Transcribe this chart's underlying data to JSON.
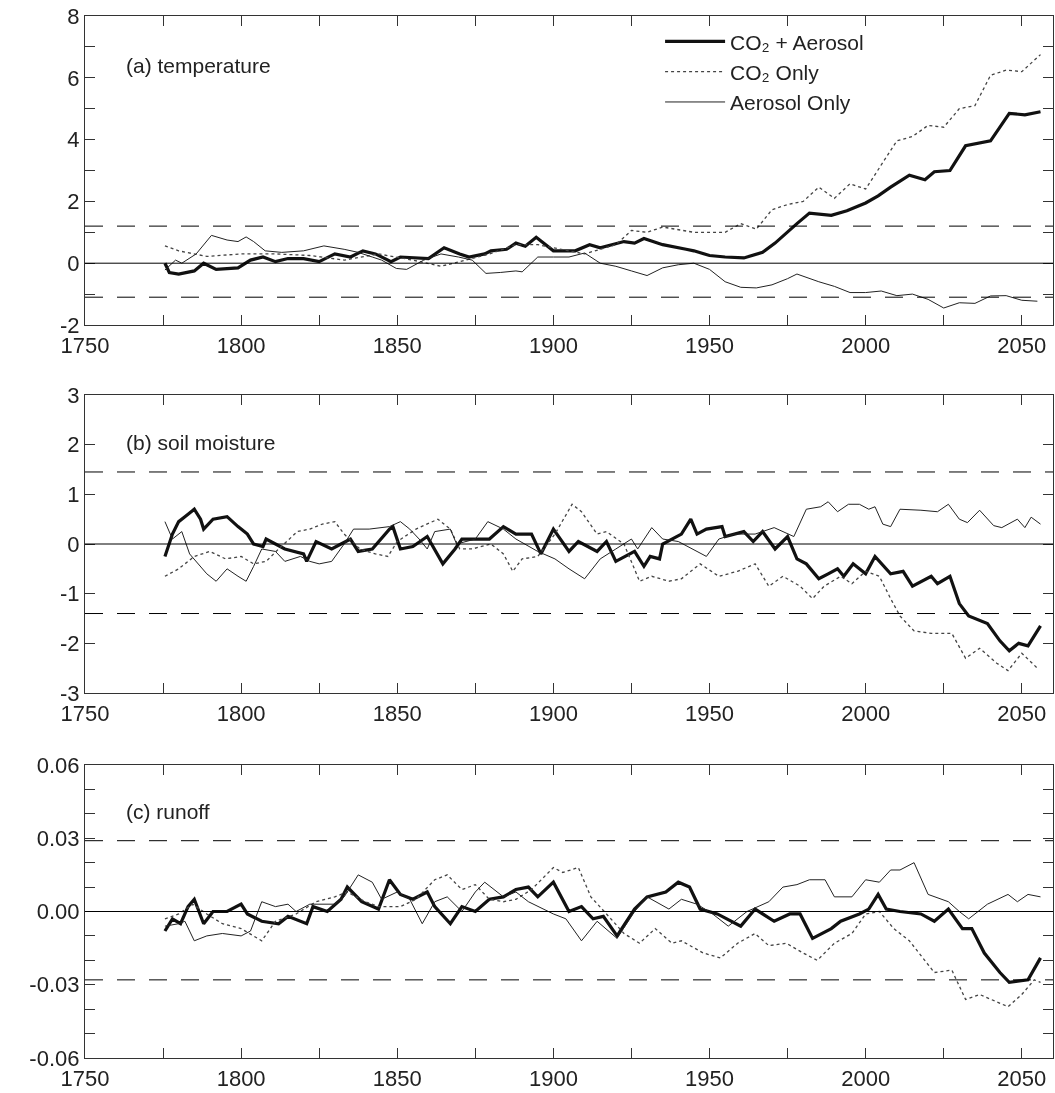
{
  "chart_data": [
    {
      "type": "line",
      "title": "(a) temperature",
      "xlim": [
        1750,
        2060
      ],
      "xticks": [
        1750,
        {
          "value": 1775,
          "label": null
        },
        1800,
        {
          "value": 1825,
          "label": null
        },
        1850,
        {
          "value": 1875,
          "label": null
        },
        1900,
        {
          "value": 1925,
          "label": null
        },
        1950,
        {
          "value": 1975,
          "label": null
        },
        2000,
        {
          "value": 2025,
          "label": null
        },
        2050
      ],
      "ylim": [
        -2,
        8
      ],
      "yticks": [
        -2,
        {
          "value": -1,
          "label": null
        },
        0,
        {
          "value": 1,
          "label": null
        },
        2,
        {
          "value": 3,
          "label": null
        },
        4,
        {
          "value": 5,
          "label": null
        },
        6,
        {
          "value": 7,
          "label": null
        },
        8
      ],
      "legend": "top right",
      "ref_lines": [
        {
          "axis": "y",
          "value": 0,
          "line_style": "solid",
          "color": "#000000"
        },
        {
          "axis": "y",
          "value": 1.2,
          "line_style": "dashed",
          "color": "#000000"
        },
        {
          "axis": "y",
          "value": -1.1,
          "line_style": "dashed",
          "color": "#000000"
        }
      ],
      "series": [
        {
          "name": "CO₂ + Aerosol",
          "color": "#111111",
          "line_style": "solid",
          "x": [
            1775.6,
            1777,
            1780,
            1785,
            1788,
            1792,
            1799,
            1803,
            1807,
            1811,
            1815,
            1820,
            1825,
            1830,
            1835,
            1839,
            1843,
            1848,
            1851,
            1860,
            1865,
            1870,
            1873,
            1878,
            1880,
            1885,
            1888,
            1891,
            1894.5,
            1900,
            1907,
            1911.6,
            1915,
            1922.6,
            1926,
            1929,
            1935,
            1942.5,
            1945,
            1950,
            1955,
            1961,
            1967,
            1971,
            1978,
            1982,
            1989,
            1994,
            2000,
            2004,
            2008,
            2014,
            2019,
            2022,
            2027,
            2032,
            2040,
            2046,
            2051,
            2056
          ],
          "values": [
            0,
            -0.3,
            -0.35,
            -0.25,
            0,
            -0.2,
            -0.15,
            0.1,
            0.2,
            0.05,
            0.15,
            0.15,
            0.05,
            0.3,
            0.2,
            0.4,
            0.3,
            0.05,
            0.2,
            0.15,
            0.5,
            0.3,
            0.2,
            0.3,
            0.4,
            0.45,
            0.65,
            0.55,
            0.84,
            0.4,
            0.4,
            0.6,
            0.5,
            0.7,
            0.65,
            0.8,
            0.6,
            0.45,
            0.4,
            0.25,
            0.2,
            0.17,
            0.35,
            0.65,
            1.28,
            1.62,
            1.55,
            1.7,
            1.95,
            2.18,
            2.46,
            2.85,
            2.7,
            2.96,
            3.0,
            3.8,
            3.96,
            4.85,
            4.8,
            4.9
          ]
        },
        {
          "name": "CO₂ Only",
          "color": "#444444",
          "line_style": "dotted",
          "x": [
            1775.6,
            1780,
            1789,
            1800,
            1811,
            1822,
            1833,
            1844,
            1855,
            1864,
            1872,
            1879.5,
            1888,
            1895,
            1900,
            1910,
            1920,
            1925,
            1930,
            1935,
            1945,
            1950,
            1955,
            1960,
            1965,
            1970,
            1975,
            1980,
            1985,
            1990,
            1995,
            2000,
            2005,
            2010,
            2015,
            2020,
            2025,
            2030,
            2035,
            2040,
            2045,
            2050,
            2056
          ],
          "values": [
            0.56,
            0.4,
            0.22,
            0.3,
            0.3,
            0.25,
            0.1,
            0.3,
            0.1,
            -0.1,
            0.1,
            0.3,
            0.6,
            0.6,
            0.5,
            0.3,
            0.6,
            1.06,
            1.0,
            1.17,
            1.0,
            1.0,
            1.0,
            1.28,
            1.1,
            1.73,
            1.9,
            2.0,
            2.46,
            2.1,
            2.57,
            2.4,
            3.18,
            3.96,
            4.1,
            4.46,
            4.4,
            5.0,
            5.1,
            6.08,
            6.25,
            6.2,
            6.75
          ]
        },
        {
          "name": "Aerosol Only",
          "color": "#222222",
          "line_style": "solid",
          "x": [
            1775.6,
            1779,
            1781,
            1785.6,
            1790.5,
            1795.5,
            1799,
            1801.6,
            1804,
            1807.7,
            1813,
            1820,
            1826.5,
            1833,
            1837.5,
            1842,
            1845,
            1849.7,
            1853,
            1858.5,
            1864,
            1869.6,
            1874,
            1878.4,
            1883,
            1888,
            1890,
            1895,
            1900,
            1905,
            1910,
            1915,
            1920,
            1925,
            1930,
            1935,
            1940,
            1945,
            1950,
            1955,
            1960,
            1965,
            1970,
            1975,
            1978,
            1985,
            1990,
            1995,
            2000,
            2005,
            2010,
            2015,
            2020,
            2025,
            2030,
            2035,
            2040,
            2045,
            2050,
            2055
          ],
          "values": [
            -0.22,
            0.1,
            0,
            0.3,
            0.9,
            0.75,
            0.7,
            0.85,
            0.7,
            0.4,
            0.35,
            0.4,
            0.56,
            0.45,
            0.35,
            0.2,
            0.1,
            -0.17,
            -0.2,
            0.1,
            0.3,
            0.2,
            0.1,
            -0.33,
            -0.3,
            -0.25,
            -0.28,
            0.2,
            0.2,
            0.2,
            0.33,
            0.0,
            -0.1,
            -0.25,
            -0.4,
            -0.15,
            -0.05,
            0.0,
            -0.2,
            -0.6,
            -0.78,
            -0.8,
            -0.7,
            -0.5,
            -0.35,
            -0.6,
            -0.75,
            -0.95,
            -0.95,
            -0.9,
            -1.05,
            -1.0,
            -1.17,
            -1.45,
            -1.28,
            -1.3,
            -1.06,
            -1.05,
            -1.2,
            -1.23
          ]
        }
      ]
    },
    {
      "type": "line",
      "title": "(b) soil moisture",
      "xlim": [
        1750,
        2060
      ],
      "xticks": [
        1750,
        {
          "value": 1775,
          "label": null
        },
        1800,
        {
          "value": 1825,
          "label": null
        },
        1850,
        {
          "value": 1875,
          "label": null
        },
        1900,
        {
          "value": 1925,
          "label": null
        },
        1950,
        {
          "value": 1975,
          "label": null
        },
        2000,
        {
          "value": 2025,
          "label": null
        },
        2050
      ],
      "ylim": [
        -3,
        3
      ],
      "yticks": [
        -3,
        -2,
        -1,
        0,
        1,
        2,
        3
      ],
      "legend": false,
      "ref_lines": [
        {
          "axis": "y",
          "value": 0,
          "line_style": "solid",
          "color": "#000000"
        },
        {
          "axis": "y",
          "value": 1.45,
          "line_style": "dashed",
          "color": "#000000"
        },
        {
          "axis": "y",
          "value": -1.4,
          "line_style": "dashed",
          "color": "#000000"
        }
      ],
      "series": [
        {
          "color": "#111111",
          "line_style": "solid",
          "x": [
            1775.6,
            1778,
            1780,
            1782,
            1785,
            1787,
            1788,
            1791,
            1795.5,
            1799,
            1801,
            1802,
            1804,
            1807,
            1808,
            1814,
            1820,
            1821,
            1824,
            1829,
            1832,
            1835,
            1837.5,
            1842,
            1847.5,
            1848.6,
            1851,
            1855,
            1859.6,
            1864.6,
            1868.5,
            1870.7,
            1879.5,
            1884,
            1888,
            1893,
            1896,
            1900,
            1905,
            1908,
            1914,
            1917,
            1920,
            1926,
            1929,
            1931,
            1934,
            1935,
            1941,
            1944,
            1946,
            1949,
            1954,
            1955,
            1961,
            1964,
            1967,
            1971,
            1975,
            1978,
            1981,
            1985,
            1988,
            1991,
            1993,
            1996,
            2000,
            2003,
            2008,
            2012,
            2015,
            2021,
            2023,
            2027,
            2030,
            2033,
            2039,
            2043,
            2046,
            2049,
            2052,
            2056
          ],
          "values": [
            -0.25,
            0.2,
            0.45,
            0.55,
            0.7,
            0.5,
            0.3,
            0.5,
            0.55,
            0.35,
            0.25,
            0.2,
            0.0,
            -0.05,
            0.1,
            -0.1,
            -0.2,
            -0.35,
            0.05,
            -0.1,
            0.0,
            0.1,
            -0.15,
            -0.1,
            0.3,
            0.35,
            -0.1,
            -0.05,
            0.15,
            -0.4,
            -0.1,
            0.1,
            0.1,
            0.35,
            0.2,
            0.2,
            -0.2,
            0.3,
            -0.15,
            0.05,
            -0.15,
            0.05,
            -0.35,
            -0.15,
            -0.45,
            -0.25,
            -0.3,
            0.0,
            0.2,
            0.5,
            0.2,
            0.3,
            0.35,
            0.15,
            0.25,
            0.05,
            0.25,
            -0.1,
            0.15,
            -0.3,
            -0.4,
            -0.7,
            -0.6,
            -0.5,
            -0.65,
            -0.4,
            -0.6,
            -0.25,
            -0.6,
            -0.55,
            -0.85,
            -0.65,
            -0.8,
            -0.65,
            -1.2,
            -1.45,
            -1.6,
            -1.95,
            -2.15,
            -2.0,
            -2.05,
            -1.65
          ]
        },
        {
          "color": "#444444",
          "line_style": "dotted",
          "x": [
            1775.6,
            1780,
            1785,
            1790,
            1795,
            1800,
            1804,
            1808,
            1812,
            1818,
            1822,
            1826,
            1830,
            1833,
            1838,
            1843,
            1847,
            1850,
            1856,
            1863,
            1867,
            1870,
            1874,
            1880,
            1884,
            1887,
            1890,
            1895,
            1900.5,
            1906,
            1909,
            1914,
            1917,
            1922.6,
            1927.6,
            1931.5,
            1937,
            1941,
            1947,
            1953,
            1959,
            1964.6,
            1969,
            1973.5,
            1979,
            1983,
            1986.7,
            1992,
            1995.6,
            2000,
            2004.4,
            2008,
            2011,
            2015.5,
            2021,
            2027.6,
            2032,
            2036.5,
            2042,
            2045.6,
            2050,
            2055
          ],
          "values": [
            -0.65,
            -0.5,
            -0.25,
            -0.15,
            -0.3,
            -0.25,
            -0.4,
            -0.35,
            -0.1,
            0.25,
            0.3,
            0.4,
            0.45,
            0.2,
            -0.1,
            -0.2,
            -0.25,
            0.05,
            0.3,
            0.5,
            0.3,
            -0.1,
            -0.1,
            0.0,
            -0.2,
            -0.55,
            -0.3,
            -0.25,
            0.2,
            0.8,
            0.65,
            0.2,
            0.25,
            0.0,
            -0.75,
            -0.65,
            -0.75,
            -0.7,
            -0.4,
            -0.65,
            -0.55,
            -0.4,
            -0.85,
            -0.65,
            -0.85,
            -1.1,
            -0.85,
            -0.65,
            -0.8,
            -0.55,
            -0.65,
            -1.1,
            -1.45,
            -1.75,
            -1.8,
            -1.8,
            -2.3,
            -2.1,
            -2.4,
            -2.55,
            -2.2,
            -2.5
          ]
        },
        {
          "color": "#222222",
          "line_style": "solid",
          "x": [
            1775.6,
            1778,
            1781,
            1783.5,
            1789,
            1792,
            1795.5,
            1799,
            1801.6,
            1804,
            1806.6,
            1811,
            1814,
            1819,
            1822,
            1825,
            1829,
            1833,
            1836,
            1841,
            1847.5,
            1851,
            1854,
            1857,
            1859.6,
            1862,
            1867,
            1869,
            1875,
            1879,
            1884,
            1888,
            1895,
            1900.5,
            1905,
            1910,
            1915,
            1920,
            1925,
            1927,
            1931.5,
            1935,
            1940,
            1946,
            1949,
            1953,
            1958,
            1964.6,
            1970.7,
            1977,
            1981,
            1985.6,
            1988,
            1991,
            1994.5,
            1998,
            2001,
            2003,
            2005.5,
            2008,
            2011,
            2017.7,
            2023,
            2026.5,
            2030,
            2032.6,
            2036.5,
            2041,
            2043.6,
            2048.6,
            2051,
            2053,
            2056
          ],
          "values": [
            0.45,
            0.1,
            0.25,
            -0.2,
            -0.6,
            -0.75,
            -0.5,
            -0.65,
            -0.75,
            -0.45,
            -0.1,
            -0.15,
            -0.35,
            -0.25,
            -0.35,
            -0.4,
            -0.35,
            0.0,
            0.3,
            0.3,
            0.35,
            0.45,
            0.3,
            0.1,
            -0.1,
            0.25,
            0.3,
            0.0,
            0.1,
            0.45,
            0.3,
            0.1,
            -0.15,
            -0.3,
            -0.5,
            -0.7,
            -0.3,
            -0.1,
            0.1,
            -0.1,
            0.33,
            0.1,
            0.05,
            -0.15,
            -0.25,
            0.1,
            0.2,
            0.2,
            0.33,
            0.15,
            0.7,
            0.75,
            0.85,
            0.65,
            0.8,
            0.8,
            0.7,
            0.75,
            0.4,
            0.35,
            0.7,
            0.68,
            0.65,
            0.8,
            0.5,
            0.43,
            0.68,
            0.37,
            0.33,
            0.5,
            0.33,
            0.54,
            0.4
          ]
        }
      ]
    },
    {
      "type": "line",
      "title": "(c) runoff",
      "xlim": [
        1750,
        2060
      ],
      "xticks": [
        1750,
        {
          "value": 1775,
          "label": null
        },
        1800,
        {
          "value": 1825,
          "label": null
        },
        1850,
        {
          "value": 1875,
          "label": null
        },
        1900,
        {
          "value": 1925,
          "label": null
        },
        1950,
        {
          "value": 1975,
          "label": null
        },
        2000,
        {
          "value": 2025,
          "label": null
        },
        2050
      ],
      "ylim": [
        -0.06,
        0.06
      ],
      "yticks": [
        {
          "value": -0.06,
          "label": "-0.06"
        },
        {
          "value": -0.05,
          "label": null
        },
        {
          "value": -0.04,
          "label": null
        },
        {
          "value": -0.03,
          "label": "-0.03"
        },
        {
          "value": -0.02,
          "label": null
        },
        {
          "value": -0.01,
          "label": null
        },
        {
          "value": 0,
          "label": "0.00"
        },
        {
          "value": 0.01,
          "label": null
        },
        {
          "value": 0.02,
          "label": null
        },
        {
          "value": 0.03,
          "label": "0.03"
        },
        {
          "value": 0.04,
          "label": null
        },
        {
          "value": 0.05,
          "label": null
        },
        {
          "value": 0.06,
          "label": "0.06"
        }
      ],
      "legend": false,
      "ref_lines": [
        {
          "axis": "y",
          "value": 0,
          "line_style": "solid",
          "color": "#000000"
        },
        {
          "axis": "y",
          "value": 0.029,
          "line_style": "dashed",
          "color": "#000000"
        },
        {
          "axis": "y",
          "value": -0.028,
          "line_style": "dashed",
          "color": "#000000"
        }
      ],
      "series": [
        {
          "color": "#111111",
          "line_style": "solid",
          "x": [
            1775.6,
            1778,
            1780.6,
            1783,
            1785,
            1788,
            1791,
            1795.5,
            1800,
            1802,
            1806.6,
            1812,
            1815,
            1821,
            1823,
            1827.6,
            1832,
            1834,
            1838.6,
            1844,
            1847.5,
            1851,
            1855,
            1859.6,
            1862,
            1867,
            1870.7,
            1875,
            1879.5,
            1884,
            1888,
            1892,
            1895,
            1900,
            1905,
            1909,
            1912.7,
            1916,
            1920.4,
            1926,
            1930,
            1936,
            1940,
            1943.6,
            1947,
            1952.5,
            1960,
            1964.6,
            1970.7,
            1975.7,
            1979,
            1983,
            1989,
            1992,
            1998,
            2001,
            2004,
            2006.6,
            2011,
            2017.7,
            2022,
            2026.5,
            2031,
            2034,
            2038,
            2043,
            2046,
            2052,
            2056
          ],
          "values": [
            -0.008,
            -0.003,
            -0.005,
            0.002,
            0.005,
            -0.005,
            0.0,
            0.0,
            0.003,
            -0.001,
            -0.004,
            -0.005,
            -0.002,
            -0.005,
            0.002,
            0.0,
            0.005,
            0.01,
            0.004,
            0.001,
            0.013,
            0.007,
            0.005,
            0.008,
            0.002,
            -0.005,
            0.002,
            0.0,
            0.005,
            0.006,
            0.009,
            0.01,
            0.006,
            0.012,
            0.0,
            0.002,
            -0.003,
            -0.002,
            -0.01,
            0.001,
            0.006,
            0.008,
            0.012,
            0.01,
            0.001,
            -0.001,
            -0.006,
            0.001,
            -0.004,
            -0.001,
            -0.001,
            -0.011,
            -0.007,
            -0.004,
            -0.001,
            0.001,
            0.007,
            0.001,
            0.0,
            -0.001,
            -0.004,
            0.001,
            -0.007,
            -0.007,
            -0.017,
            -0.025,
            -0.029,
            -0.028,
            -0.019
          ]
        },
        {
          "color": "#444444",
          "line_style": "dotted",
          "x": [
            1775.6,
            1780,
            1784.5,
            1789,
            1794,
            1800,
            1806.6,
            1811,
            1817.6,
            1824,
            1830,
            1834,
            1839.7,
            1844,
            1851,
            1856,
            1862,
            1866,
            1870.7,
            1875,
            1879.5,
            1884,
            1888,
            1893,
            1900,
            1903,
            1908,
            1912,
            1917,
            1922.6,
            1927.6,
            1932.6,
            1938,
            1941,
            1948,
            1953.5,
            1959,
            1964.6,
            1969,
            1974.6,
            1980,
            1984.5,
            1990,
            1995.6,
            2000,
            2004.4,
            2009,
            2014,
            2022,
            2027.6,
            2032,
            2036.5,
            2045.6,
            2050,
            2054,
            2056
          ],
          "values": [
            -0.003,
            -0.001,
            0.003,
            -0.001,
            -0.005,
            -0.007,
            -0.012,
            -0.004,
            -0.001,
            0.004,
            0.006,
            0.008,
            0.004,
            0.002,
            0.002,
            0.005,
            0.013,
            0.015,
            0.009,
            0.011,
            0.005,
            0.004,
            0.005,
            0.009,
            0.018,
            0.016,
            0.018,
            0.006,
            -0.001,
            -0.009,
            -0.013,
            -0.007,
            -0.013,
            -0.012,
            -0.017,
            -0.019,
            -0.013,
            -0.009,
            -0.014,
            -0.013,
            -0.017,
            -0.02,
            -0.013,
            -0.009,
            -0.001,
            0.0,
            -0.007,
            -0.012,
            -0.025,
            -0.024,
            -0.036,
            -0.034,
            -0.039,
            -0.034,
            -0.028,
            -0.029
          ]
        },
        {
          "color": "#222222",
          "line_style": "solid",
          "x": [
            1775.6,
            1780,
            1782,
            1785,
            1789,
            1794,
            1800,
            1803,
            1806.6,
            1811,
            1815,
            1817.6,
            1822,
            1830,
            1833,
            1837.5,
            1842,
            1845,
            1850,
            1854,
            1858,
            1862,
            1866,
            1870.7,
            1875,
            1878,
            1884,
            1888,
            1892,
            1900,
            1904,
            1909,
            1914,
            1920.4,
            1926,
            1930,
            1937,
            1941,
            1946,
            1951,
            1956,
            1962,
            1969,
            1973.5,
            1978,
            1982,
            1987,
            1990,
            1995.6,
            2000,
            2004.4,
            2008,
            2011,
            2015.5,
            2020,
            2026.5,
            2030,
            2033,
            2039,
            2045.6,
            2048.6,
            2052,
            2056
          ],
          "values": [
            -0.006,
            -0.005,
            -0.004,
            -0.012,
            -0.01,
            -0.009,
            -0.01,
            -0.008,
            0.004,
            0.002,
            0.003,
            0.0,
            0.003,
            0.003,
            0.006,
            0.015,
            0.012,
            0.005,
            0.008,
            0.005,
            -0.005,
            0.004,
            0.006,
            0.0,
            0.008,
            0.012,
            0.006,
            0.008,
            0.004,
            -0.001,
            -0.003,
            -0.012,
            -0.004,
            -0.011,
            0.0,
            0.006,
            0.001,
            0.005,
            0.003,
            -0.001,
            -0.006,
            0.0,
            0.004,
            0.01,
            0.011,
            0.013,
            0.013,
            0.006,
            0.006,
            0.013,
            0.012,
            0.017,
            0.017,
            0.02,
            0.007,
            0.004,
            0.0,
            -0.003,
            0.003,
            0.007,
            0.004,
            0.007,
            0.006
          ]
        }
      ]
    }
  ]
}
